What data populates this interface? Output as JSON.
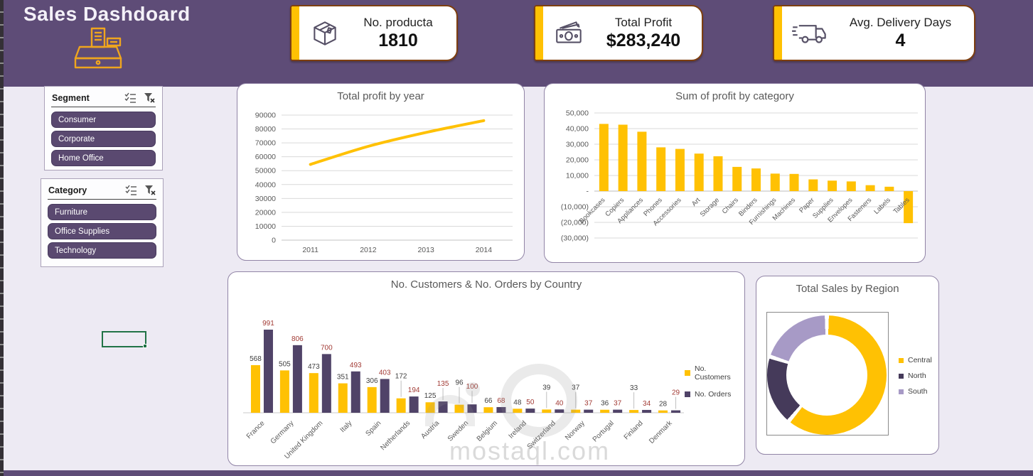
{
  "header": {
    "title": "Sales Dashdoard",
    "kpis": [
      {
        "label": "No. producta",
        "value": "1810",
        "icon": "package-icon"
      },
      {
        "label": "Total Profit",
        "value": "$283,240",
        "icon": "money-icon"
      },
      {
        "label": "Avg. Delivery Days",
        "value": "4",
        "icon": "truck-icon"
      }
    ]
  },
  "slicers": [
    {
      "title": "Segment",
      "items": [
        "Consumer",
        "Corporate",
        "Home Office"
      ]
    },
    {
      "title": "Category",
      "items": [
        "Furniture",
        "Office Supplies",
        "Technology"
      ]
    }
  ],
  "watermark": {
    "text": "mostaql.com"
  },
  "colors": {
    "accent_yellow": "#FFC103",
    "header_purple": "#5E4C77",
    "slicer_button_purple": "#5A4970",
    "bar_purple": "#504368",
    "kpi_border_brown": "#7E3F10",
    "orders_label_red": "#A23B35",
    "excel_selection_green": "#217346",
    "chart_text_gray": "#595959"
  },
  "chart_data": [
    {
      "type": "line",
      "title": "Total profit by year",
      "x": [
        "2011",
        "2012",
        "2013",
        "2014"
      ],
      "values": [
        54500,
        67500,
        77500,
        86000
      ],
      "ylim": [
        0,
        90000
      ],
      "ytick_step": 10000,
      "grid": true,
      "line_color": "#FFC103"
    },
    {
      "type": "bar",
      "title": "Sum of profit by category",
      "categories": [
        "Bookcases",
        "Copiers",
        "Appliances",
        "Phones",
        "Accessories",
        "Art",
        "Storage",
        "Chairs",
        "Binders",
        "Furnishings",
        "Machines",
        "Paper",
        "Supplies",
        "Envelopes",
        "Fasteners",
        "Labels",
        "Tables"
      ],
      "values": [
        43000,
        42500,
        38000,
        28000,
        27000,
        24000,
        22300,
        15500,
        14500,
        11200,
        11000,
        7500,
        6700,
        6200,
        3800,
        2800,
        -20500
      ],
      "ylim": [
        -30000,
        50000
      ],
      "ytick_step": 10000,
      "grid": true,
      "bar_color": "#FFC103"
    },
    {
      "type": "grouped_bar",
      "title": "No. Customers & No. Orders by Country",
      "categories": [
        "France",
        "Germany",
        "United Kingdom",
        "Italy",
        "Spain",
        "Netherlands",
        "Austria",
        "Sweden",
        "Belgium",
        "Ireland",
        "Switzerland",
        "Norway",
        "Portugal",
        "Finland",
        "Denmark"
      ],
      "series": [
        {
          "name": "No. Customers",
          "color": "#FFC103",
          "label_color": "#404040",
          "values": [
            568,
            505,
            473,
            351,
            306,
            172,
            125,
            96,
            66,
            48,
            39,
            37,
            36,
            33,
            28
          ],
          "leader_flags": [
            0,
            0,
            0,
            0,
            0,
            1,
            0,
            1,
            0,
            0,
            1,
            1,
            0,
            1,
            0
          ]
        },
        {
          "name": "No. Orders",
          "color": "#504368",
          "label_color": "#A23B35",
          "values": [
            991,
            806,
            700,
            493,
            403,
            194,
            135,
            100,
            68,
            50,
            40,
            37,
            37,
            34,
            29
          ],
          "leader_flags": [
            0,
            0,
            0,
            0,
            0,
            0,
            1,
            1,
            0,
            0,
            0,
            0,
            0,
            0,
            1
          ]
        }
      ],
      "legend_position": "right"
    },
    {
      "type": "donut",
      "title": "Total Sales by Region",
      "segments": [
        {
          "label": "Central",
          "value": 61,
          "color": "#FFC103"
        },
        {
          "label": "North",
          "value": 19,
          "color": "#453A5A"
        },
        {
          "label": "South",
          "value": 20,
          "color": "#A79AC6"
        }
      ],
      "legend_position": "right"
    }
  ]
}
